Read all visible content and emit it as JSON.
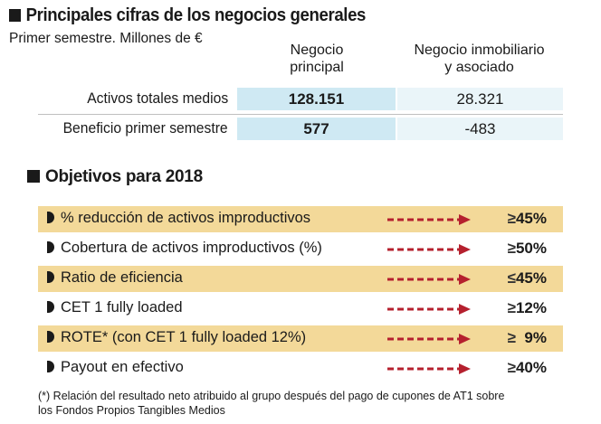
{
  "title": "Principales cifras de los negocios generales",
  "subtitle": "Primer semestre. Millones de €",
  "table": {
    "col1_header": [
      "Negocio",
      "principal"
    ],
    "col2_header": [
      "Negocio inmobiliario",
      "y asociado"
    ],
    "rows": [
      {
        "label": "Activos totales medios",
        "v1": "128.151",
        "v2": "28.321"
      },
      {
        "label": "Beneficio primer semestre",
        "v1": "577",
        "v2": "-483"
      }
    ]
  },
  "objectives_title": "Objetivos para 2018",
  "objectives": [
    {
      "label": "% reducción de activos improductivos",
      "rel": "≥",
      "value": "45%",
      "shaded": true
    },
    {
      "label": "Cobertura de activos improductivos (%)",
      "rel": "≥",
      "value": "50%",
      "shaded": false
    },
    {
      "label": "Ratio de eficiencia",
      "rel": "≤",
      "value": "45%",
      "shaded": true
    },
    {
      "label": "CET 1 fully loaded",
      "rel": "≥",
      "value": "12%",
      "shaded": false
    },
    {
      "label": "ROTE* (con CET 1 fully loaded 12%)",
      "rel": "≥",
      "value": "  9%",
      "shaded": true
    },
    {
      "label": "Payout en efectivo",
      "rel": "≥",
      "value": "40%",
      "shaded": false
    }
  ],
  "footnote": [
    "(*) Relación del resultado neto atribuido al grupo después del pago de cupones de AT1 sobre",
    "los Fondos Propios Tangibles Medios"
  ],
  "colors": {
    "shaded_row": "#f3d999",
    "arrow": "#b5202e",
    "cell_main": "#cfe9f3",
    "cell_sec": "#eaf5f9"
  }
}
